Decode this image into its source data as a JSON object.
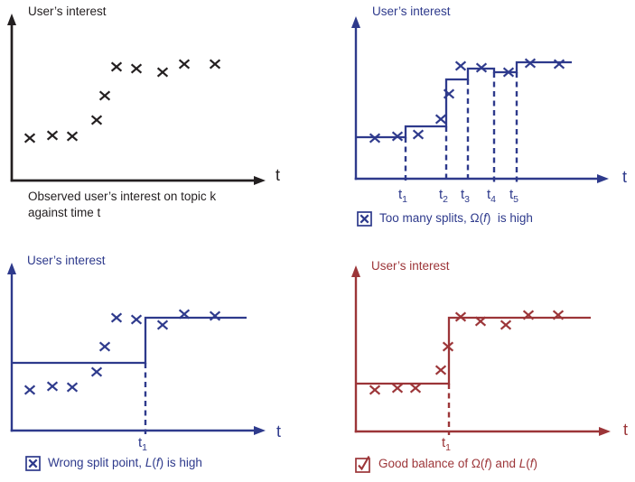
{
  "colors": {
    "black": "#231f20",
    "navy": "#2e3a8c",
    "red": "#9c3538",
    "background": "#ffffff"
  },
  "chart_data": [
    {
      "id": "observed",
      "type": "scatter",
      "color": "black",
      "y_axis_label": "User’s interest",
      "x_axis_label": "t",
      "xlim": [
        0,
        282
      ],
      "ylim": [
        0,
        185
      ],
      "x": [
        20,
        45,
        67,
        94,
        103,
        116,
        138,
        167,
        191,
        225
      ],
      "y": [
        47,
        50,
        49,
        67,
        94,
        126,
        124,
        120,
        129,
        129
      ],
      "caption_icon": null,
      "caption": [
        {
          "t": "Observed user’s interest on topic k",
          "br": true
        },
        {
          "t": "against time t"
        }
      ]
    },
    {
      "id": "too-many-splits",
      "type": "scatter-step",
      "color": "navy",
      "y_axis_label": "User’s interest",
      "x_axis_label": "t",
      "x": [
        21,
        46,
        69,
        94,
        103,
        116,
        139,
        169,
        193,
        225
      ],
      "y": [
        45,
        47,
        49,
        66,
        94,
        125,
        123,
        118,
        128,
        127
      ],
      "step": {
        "breaks": [
          55,
          100,
          124,
          153,
          178
        ],
        "levels": [
          46,
          58,
          110,
          122,
          118,
          129
        ],
        "end": 239
      },
      "split_labels": [
        {
          "base": "t",
          "sub": "1"
        },
        {
          "base": "t",
          "sub": "2"
        },
        {
          "base": "t",
          "sub": "3"
        },
        {
          "base": "t",
          "sub": "4"
        },
        {
          "base": "t",
          "sub": "5"
        }
      ],
      "caption_icon": "box-x",
      "caption": [
        {
          "t": "Too many splits, "
        },
        {
          "t": "Ω("
        },
        {
          "t": "f",
          "i": true
        },
        {
          "t": ")  is high"
        }
      ]
    },
    {
      "id": "wrong-split",
      "type": "scatter-step",
      "color": "navy",
      "y_axis_label": "User’s interest",
      "x_axis_label": "t",
      "x": [
        20,
        45,
        67,
        94,
        103,
        116,
        138,
        167,
        191,
        225
      ],
      "y": [
        45,
        49,
        48,
        65,
        93,
        125,
        123,
        117,
        129,
        127
      ],
      "step": {
        "breaks": [
          148
        ],
        "levels": [
          75,
          125
        ],
        "end": 260
      },
      "split_labels": [
        {
          "base": "t",
          "sub": "1"
        }
      ],
      "caption_icon": "box-x",
      "caption": [
        {
          "t": "Wrong split point, "
        },
        {
          "t": "L",
          "i": true
        },
        {
          "t": "("
        },
        {
          "t": "f",
          "i": true
        },
        {
          "t": ") is high"
        }
      ]
    },
    {
      "id": "good-balance",
      "type": "scatter-step",
      "color": "red",
      "y_axis_label": "User’s interest",
      "x_axis_label": "t",
      "x": [
        21,
        46,
        66,
        94,
        102,
        116,
        138,
        166,
        191,
        224
      ],
      "y": [
        46,
        48,
        48,
        68,
        94,
        127,
        122,
        118,
        129,
        129
      ],
      "step": {
        "breaks": [
          103
        ],
        "levels": [
          53,
          126
        ],
        "end": 260
      },
      "split_labels": [
        {
          "base": "t",
          "sub": "1"
        }
      ],
      "caption_icon": "box-check",
      "caption": [
        {
          "t": "Good balance of "
        },
        {
          "t": "Ω("
        },
        {
          "t": "f",
          "i": true
        },
        {
          "t": ") and "
        },
        {
          "t": "L",
          "i": true
        },
        {
          "t": "("
        },
        {
          "t": "f",
          "i": true
        },
        {
          "t": ")"
        }
      ]
    }
  ]
}
